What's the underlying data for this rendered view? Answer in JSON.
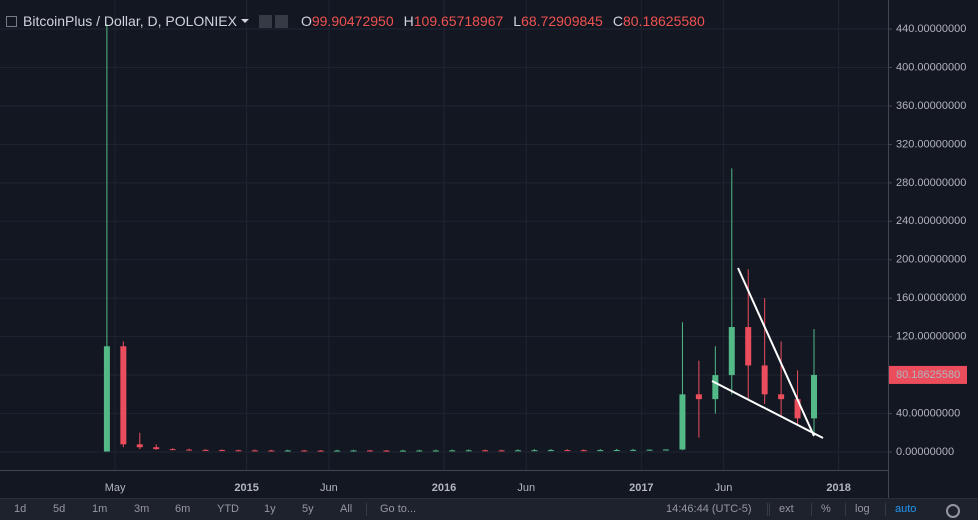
{
  "chart_data": {
    "type": "candlestick",
    "title": "BitcoinPlus / Dollar, D, POLONIEX",
    "ohlc_legend": [
      {
        "label": "O",
        "value": "99.90472950"
      },
      {
        "label": "H",
        "value": "109.65718967"
      },
      {
        "label": "L",
        "value": "68.72909845"
      },
      {
        "label": "C",
        "value": "80.18625580"
      }
    ],
    "x": [
      "2014-04",
      "2014-05",
      "2014-06",
      "2014-07",
      "2014-08",
      "2014-09",
      "2014-10",
      "2014-11",
      "2014-12",
      "2015-01",
      "2015-02",
      "2015-03",
      "2015-04",
      "2015-05",
      "2015-06",
      "2015-07",
      "2015-08",
      "2015-09",
      "2015-10",
      "2015-11",
      "2015-12",
      "2016-01",
      "2016-02",
      "2016-03",
      "2016-04",
      "2016-05",
      "2016-06",
      "2016-07",
      "2016-08",
      "2016-09",
      "2016-10",
      "2016-11",
      "2016-12",
      "2017-01",
      "2017-02",
      "2017-03",
      "2017-04",
      "2017-05",
      "2017-06",
      "2017-07",
      "2017-08",
      "2017-09",
      "2017-10",
      "2017-11"
    ],
    "open": [
      0.5,
      110,
      8,
      5,
      3,
      2.5,
      2.2,
      2,
      1.8,
      1.7,
      1.6,
      1.5,
      1.6,
      1.5,
      1.4,
      1.5,
      1.6,
      1.5,
      1.4,
      1.5,
      1.6,
      1.6,
      1.7,
      1.8,
      1.7,
      1.6,
      1.8,
      1.9,
      2,
      1.9,
      1.8,
      2,
      2.1,
      2.2,
      2.4,
      2.6,
      60,
      55,
      80,
      130,
      90,
      60,
      55,
      35
    ],
    "high": [
      445,
      115,
      20,
      8,
      4,
      3.5,
      3,
      2.8,
      2.5,
      2.5,
      2.3,
      2.4,
      2.2,
      2.1,
      2.3,
      2.4,
      2.2,
      2.1,
      2.3,
      2.4,
      2.5,
      2.6,
      2.7,
      2.6,
      2.5,
      2.8,
      3,
      3.1,
      2.9,
      2.8,
      3.1,
      3.2,
      3.3,
      2.8,
      3,
      135,
      95,
      110,
      295,
      190,
      160,
      115,
      85,
      128
    ],
    "low": [
      0.4,
      5,
      3,
      2.5,
      2,
      1.8,
      1.6,
      1.5,
      1.4,
      1.2,
      1.2,
      1.1,
      1.2,
      1.1,
      1.1,
      1.2,
      1.2,
      1.1,
      1.1,
      1.2,
      1.3,
      1.3,
      1.4,
      1.4,
      1.3,
      1.4,
      1.5,
      1.6,
      1.6,
      1.5,
      1.6,
      1.7,
      1.8,
      1.9,
      2.1,
      2,
      15,
      40,
      60,
      55,
      50,
      38,
      28,
      20
    ],
    "close": [
      110,
      8,
      5,
      3,
      2.5,
      2.2,
      2,
      1.8,
      1.7,
      1.6,
      1.5,
      1.6,
      1.5,
      1.4,
      1.5,
      1.6,
      1.5,
      1.4,
      1.5,
      1.6,
      1.6,
      1.7,
      1.8,
      1.7,
      1.6,
      1.8,
      1.9,
      2,
      1.9,
      1.8,
      2,
      2.1,
      2.2,
      2.4,
      2.6,
      60,
      55,
      80,
      130,
      90,
      60,
      55,
      35,
      80.1862558
    ],
    "last_label": "80.18625580",
    "up_color": "#53b987",
    "down_color": "#eb4d5c",
    "xlim": [
      "2013-10",
      "2018-04"
    ],
    "xticks": [
      {
        "value": "2014-05",
        "label": "May"
      },
      {
        "value": "2015-01",
        "label": "2015"
      },
      {
        "value": "2015-06",
        "label": "Jun"
      },
      {
        "value": "2016-01",
        "label": "2016"
      },
      {
        "value": "2016-06",
        "label": "Jun"
      },
      {
        "value": "2017-01",
        "label": "2017"
      },
      {
        "value": "2017-06",
        "label": "Jun"
      },
      {
        "value": "2018-01",
        "label": "2018"
      }
    ],
    "ylim": [
      -18.7,
      470.2
    ],
    "yticks": [
      {
        "value": 0,
        "label": "0.00000000"
      },
      {
        "value": 40,
        "label": "40.00000000"
      },
      {
        "value": 80,
        "label": "80.00000000"
      },
      {
        "value": 120,
        "label": "120.00000000"
      },
      {
        "value": 160,
        "label": "160.00000000"
      },
      {
        "value": 200,
        "label": "200.00000000"
      },
      {
        "value": 240,
        "label": "240.00000000"
      },
      {
        "value": 280,
        "label": "280.00000000"
      },
      {
        "value": 320,
        "label": "320.00000000"
      },
      {
        "value": 360,
        "label": "360.00000000"
      },
      {
        "value": 400,
        "label": "400.00000000"
      },
      {
        "value": 440,
        "label": "440.00000000"
      }
    ],
    "grid": true
  },
  "toolbar": {
    "ranges": [
      "1d",
      "5d",
      "1m",
      "3m",
      "6m",
      "YTD",
      "1y",
      "5y",
      "All"
    ],
    "goto": "Go to...",
    "clock": "14:46:44 (UTC-5)",
    "options": [
      "ext",
      "%",
      "log",
      "auto"
    ]
  }
}
